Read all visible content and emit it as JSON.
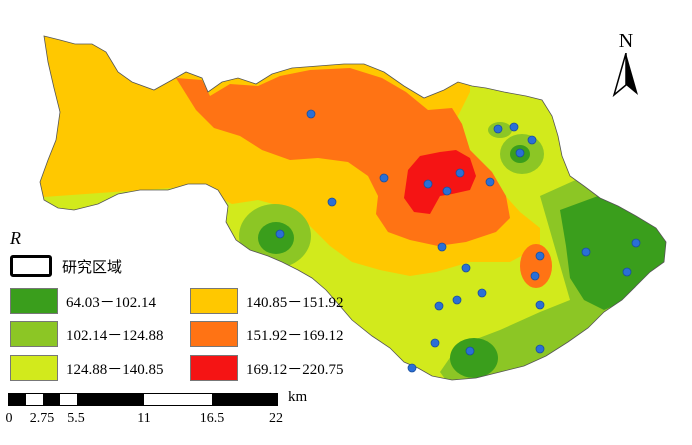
{
  "legend": {
    "title": "R",
    "study_area_label": "研究区域",
    "classes": [
      {
        "label": "64.03－102.14",
        "color": "#3a9e1c"
      },
      {
        "label": "102.14－124.88",
        "color": "#8cc625"
      },
      {
        "label": "124.88－140.85",
        "color": "#d2ea1c"
      },
      {
        "label": "140.85－151.92",
        "color": "#ffc800"
      },
      {
        "label": "151.92－169.12",
        "color": "#ff7314"
      },
      {
        "label": "169.12－220.75",
        "color": "#f51414"
      }
    ]
  },
  "scale_bar": {
    "unit": "km",
    "ticks": [
      "0",
      "2.75",
      "5.5",
      "11",
      "16.5",
      "22"
    ]
  },
  "north_arrow": {
    "label": "N",
    "icon": "north-arrow-icon"
  },
  "stations": {
    "color": "#2a6fd6",
    "count": 27
  }
}
